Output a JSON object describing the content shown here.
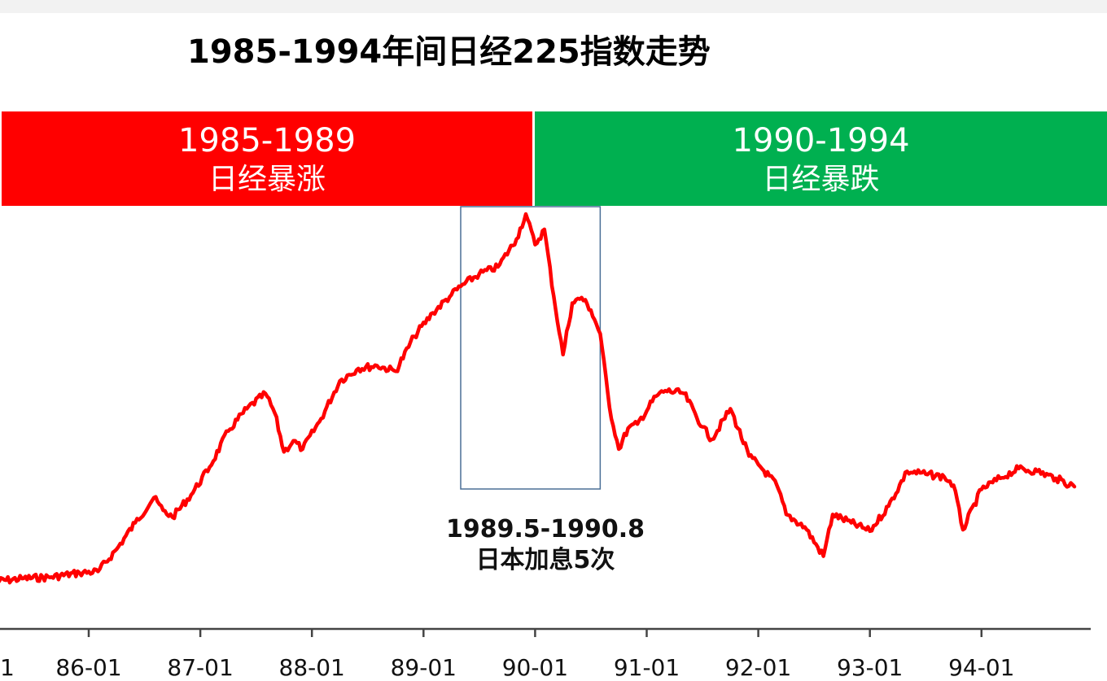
{
  "chart_data": {
    "type": "line",
    "title": "1985-1994年间日经225指数走势",
    "x_tick_labels": [
      "1",
      "86-01",
      "87-01",
      "88-01",
      "89-01",
      "90-01",
      "91-01",
      "92-01",
      "93-01",
      "94-01"
    ],
    "x_tick_dates": [
      "1985-01",
      "1986-01",
      "1987-01",
      "1988-01",
      "1989-01",
      "1990-01",
      "1991-01",
      "1992-01",
      "1993-01",
      "1994-01"
    ],
    "x_range": [
      "1985-03",
      "1994-11"
    ],
    "y_axis_visible": false,
    "grid": false,
    "series": [
      {
        "color": "#ff0000",
        "x": [
          "1985-03",
          "1985-06",
          "1985-09",
          "1985-12",
          "1986-02",
          "1986-04",
          "1986-06",
          "1986-08",
          "1986-09",
          "1986-10",
          "1986-12",
          "1987-02",
          "1987-04",
          "1987-06",
          "1987-08",
          "1987-09",
          "1987-10",
          "1987-11",
          "1987-12",
          "1988-02",
          "1988-04",
          "1988-06",
          "1988-08",
          "1988-10",
          "1988-12",
          "1989-02",
          "1989-04",
          "1989-05",
          "1989-07",
          "1989-09",
          "1989-11",
          "1989-12",
          "1990-01",
          "1990-02",
          "1990-03",
          "1990-04",
          "1990-05",
          "1990-06",
          "1990-07",
          "1990-08",
          "1990-09",
          "1990-10",
          "1990-11",
          "1990-12",
          "1991-02",
          "1991-03",
          "1991-05",
          "1991-07",
          "1991-08",
          "1991-10",
          "1991-12",
          "1992-01",
          "1992-03",
          "1992-04",
          "1992-06",
          "1992-08",
          "1992-09",
          "1992-11",
          "1993-01",
          "1993-03",
          "1993-05",
          "1993-07",
          "1993-09",
          "1993-10",
          "1993-11",
          "1994-01",
          "1994-03",
          "1994-05",
          "1994-07",
          "1994-09",
          "1994-11"
        ],
        "y": [
          12500,
          12700,
          12800,
          13100,
          13200,
          14800,
          16700,
          18500,
          17600,
          17100,
          18700,
          20700,
          23300,
          24900,
          26000,
          24600,
          21800,
          22600,
          22000,
          24200,
          26900,
          27800,
          28000,
          27600,
          30100,
          31800,
          33100,
          33700,
          34600,
          35100,
          37100,
          38900,
          36700,
          37800,
          33000,
          28800,
          32500,
          32900,
          32000,
          30300,
          25000,
          22000,
          23500,
          23800,
          25800,
          26200,
          26000,
          23600,
          22700,
          24900,
          21500,
          20900,
          19400,
          17300,
          16400,
          14300,
          17300,
          16700,
          16100,
          17900,
          20400,
          20200,
          20000,
          19400,
          16200,
          19100,
          19900,
          20600,
          20400,
          19900,
          19300
        ]
      }
    ],
    "banners": [
      {
        "period": "1985-1989",
        "label": "日经暴涨",
        "color": "#ff0000"
      },
      {
        "period": "1990-1994",
        "label": "日经暴跌",
        "color": "#00b050"
      }
    ],
    "annotation": {
      "period_label": "1989.5-1990.8",
      "text": "日本加息5次",
      "box_from": "1989-05",
      "box_to": "1990-08",
      "box_color": "#4a6f96"
    },
    "y_range_estimated": [
      11000,
      39200
    ]
  }
}
